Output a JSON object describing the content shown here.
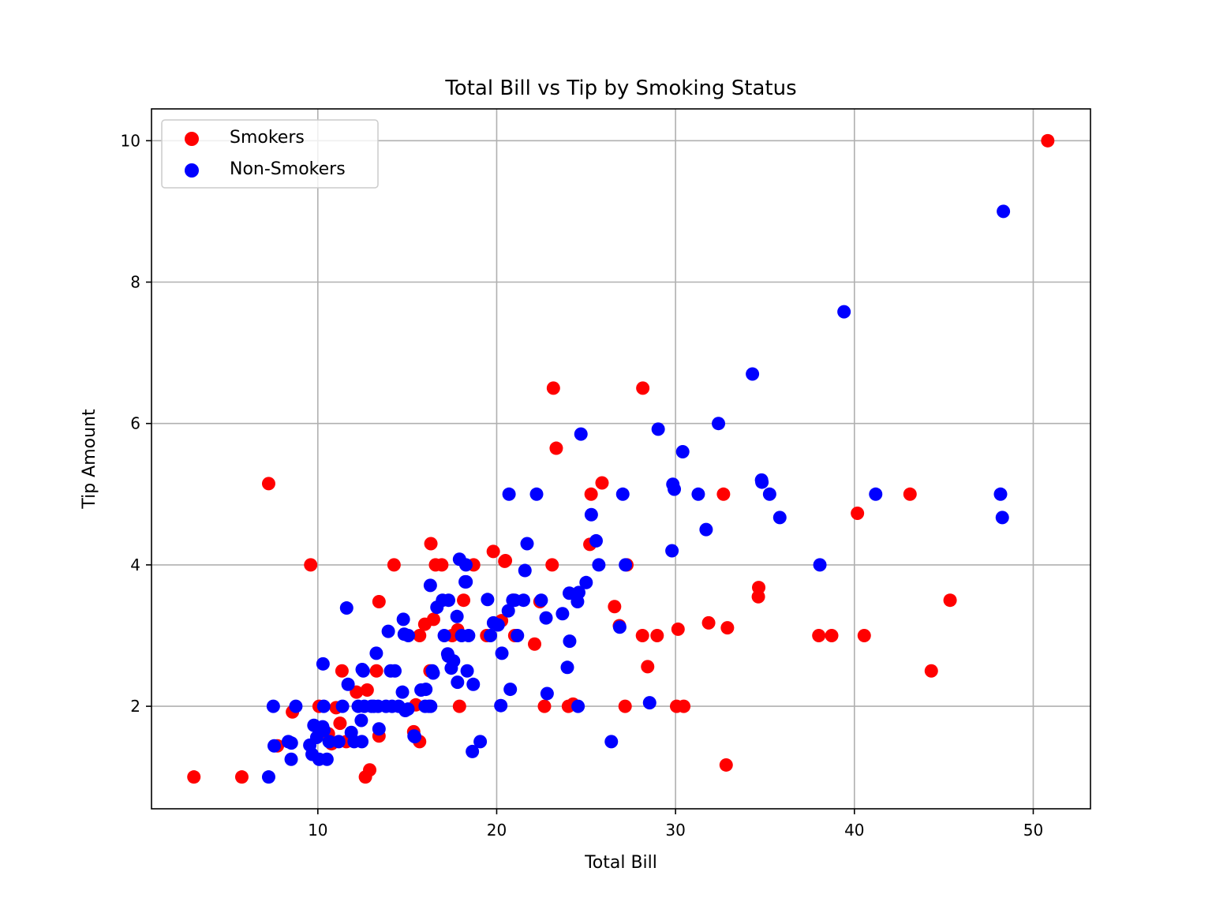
{
  "chart_data": {
    "type": "scatter",
    "title": "Total Bill vs Tip by Smoking Status",
    "xlabel": "Total Bill",
    "ylabel": "Tip Amount",
    "xlim": [
      0.7,
      53.2
    ],
    "ylim": [
      0.55,
      10.45
    ],
    "xticks": [
      10,
      20,
      30,
      40,
      50
    ],
    "yticks": [
      2,
      4,
      6,
      8,
      10
    ],
    "grid": true,
    "legend_position": "top-left",
    "series": [
      {
        "name": "Smokers",
        "color": "#ff0000",
        "points": [
          [
            3.07,
            1.0
          ],
          [
            5.75,
            1.0
          ],
          [
            7.25,
            5.15
          ],
          [
            7.74,
            1.44
          ],
          [
            8.58,
            1.92
          ],
          [
            9.6,
            4.0
          ],
          [
            10.07,
            2.0
          ],
          [
            10.59,
            1.61
          ],
          [
            10.77,
            1.47
          ],
          [
            11.02,
            1.98
          ],
          [
            11.24,
            1.76
          ],
          [
            11.35,
            2.5
          ],
          [
            11.59,
            1.5
          ],
          [
            12.16,
            2.2
          ],
          [
            12.66,
            1.0
          ],
          [
            12.76,
            2.23
          ],
          [
            12.9,
            1.1
          ],
          [
            13.28,
            2.5
          ],
          [
            13.42,
            1.58
          ],
          [
            13.42,
            3.48
          ],
          [
            14.26,
            4.0
          ],
          [
            15.36,
            1.64
          ],
          [
            15.48,
            2.02
          ],
          [
            15.69,
            3.0
          ],
          [
            15.69,
            1.5
          ],
          [
            15.98,
            3.16
          ],
          [
            16.27,
            2.5
          ],
          [
            16.32,
            4.3
          ],
          [
            16.47,
            3.23
          ],
          [
            16.58,
            4.0
          ],
          [
            16.93,
            4.0
          ],
          [
            17.51,
            3.0
          ],
          [
            17.82,
            3.08
          ],
          [
            17.92,
            2.0
          ],
          [
            18.15,
            3.5
          ],
          [
            18.71,
            4.0
          ],
          [
            19.44,
            3.0
          ],
          [
            19.81,
            4.19
          ],
          [
            20.27,
            3.21
          ],
          [
            20.45,
            4.05
          ],
          [
            20.49,
            4.06
          ],
          [
            20.92,
            3.5
          ],
          [
            21.01,
            3.0
          ],
          [
            22.12,
            2.88
          ],
          [
            22.42,
            3.48
          ],
          [
            22.67,
            2.0
          ],
          [
            23.1,
            4.0
          ],
          [
            23.17,
            6.5
          ],
          [
            23.33,
            5.65
          ],
          [
            24.01,
            2.0
          ],
          [
            24.27,
            2.03
          ],
          [
            25.21,
            4.29
          ],
          [
            25.28,
            5.0
          ],
          [
            25.89,
            5.16
          ],
          [
            26.59,
            3.41
          ],
          [
            26.86,
            3.14
          ],
          [
            27.18,
            2.0
          ],
          [
            27.28,
            4.0
          ],
          [
            28.17,
            6.5
          ],
          [
            28.15,
            3.0
          ],
          [
            28.44,
            2.56
          ],
          [
            28.97,
            3.0
          ],
          [
            30.06,
            2.0
          ],
          [
            30.14,
            3.09
          ],
          [
            30.46,
            2.0
          ],
          [
            31.85,
            3.18
          ],
          [
            32.68,
            5.0
          ],
          [
            32.83,
            1.17
          ],
          [
            32.9,
            3.11
          ],
          [
            34.63,
            3.55
          ],
          [
            34.65,
            3.68
          ],
          [
            38.01,
            3.0
          ],
          [
            38.73,
            3.0
          ],
          [
            40.17,
            4.73
          ],
          [
            40.55,
            3.0
          ],
          [
            43.11,
            5.0
          ],
          [
            44.3,
            2.5
          ],
          [
            45.35,
            3.5
          ],
          [
            50.81,
            10.0
          ]
        ]
      },
      {
        "name": "Non-Smokers",
        "color": "#0000ff",
        "points": [
          [
            7.25,
            1.0
          ],
          [
            7.51,
            2.0
          ],
          [
            7.56,
            1.44
          ],
          [
            8.35,
            1.5
          ],
          [
            8.51,
            1.25
          ],
          [
            8.52,
            1.48
          ],
          [
            8.77,
            2.0
          ],
          [
            9.55,
            1.45
          ],
          [
            9.68,
            1.32
          ],
          [
            9.78,
            1.73
          ],
          [
            9.94,
            1.56
          ],
          [
            10.07,
            1.25
          ],
          [
            10.27,
            1.71
          ],
          [
            10.29,
            2.6
          ],
          [
            10.33,
            2.0
          ],
          [
            10.34,
            1.66
          ],
          [
            10.51,
            1.25
          ],
          [
            10.63,
            1.5
          ],
          [
            10.65,
            1.5
          ],
          [
            11.17,
            1.5
          ],
          [
            11.38,
            2.0
          ],
          [
            11.61,
            3.39
          ],
          [
            11.69,
            2.31
          ],
          [
            11.87,
            1.63
          ],
          [
            12.03,
            1.5
          ],
          [
            12.26,
            2.0
          ],
          [
            12.43,
            1.8
          ],
          [
            12.46,
            1.5
          ],
          [
            12.48,
            2.52
          ],
          [
            12.54,
            2.5
          ],
          [
            12.6,
            2.0
          ],
          [
            13.0,
            2.0
          ],
          [
            13.13,
            2.0
          ],
          [
            13.27,
            2.75
          ],
          [
            13.37,
            2.0
          ],
          [
            13.42,
            1.68
          ],
          [
            13.81,
            2.0
          ],
          [
            13.94,
            3.06
          ],
          [
            14.07,
            2.5
          ],
          [
            14.15,
            2.0
          ],
          [
            14.31,
            2.5
          ],
          [
            14.52,
            2.0
          ],
          [
            14.73,
            2.2
          ],
          [
            14.78,
            3.23
          ],
          [
            14.83,
            3.02
          ],
          [
            14.89,
            1.94
          ],
          [
            15.04,
            1.96
          ],
          [
            15.06,
            3.0
          ],
          [
            15.38,
            1.58
          ],
          [
            15.42,
            1.57
          ],
          [
            15.77,
            2.23
          ],
          [
            16.0,
            2.0
          ],
          [
            16.04,
            2.24
          ],
          [
            16.21,
            2.0
          ],
          [
            16.29,
            3.71
          ],
          [
            16.31,
            2.0
          ],
          [
            16.4,
            2.5
          ],
          [
            16.45,
            2.47
          ],
          [
            16.66,
            3.4
          ],
          [
            16.97,
            3.5
          ],
          [
            17.07,
            3.0
          ],
          [
            17.26,
            2.74
          ],
          [
            17.29,
            2.71
          ],
          [
            17.31,
            3.5
          ],
          [
            17.46,
            2.54
          ],
          [
            17.59,
            2.64
          ],
          [
            17.78,
            3.27
          ],
          [
            17.81,
            2.34
          ],
          [
            17.92,
            4.08
          ],
          [
            18.04,
            3.0
          ],
          [
            18.24,
            3.76
          ],
          [
            18.28,
            4.0
          ],
          [
            18.29,
            3.76
          ],
          [
            18.35,
            2.5
          ],
          [
            18.43,
            3.0
          ],
          [
            18.64,
            1.36
          ],
          [
            18.69,
            2.31
          ],
          [
            19.08,
            1.5
          ],
          [
            19.49,
            3.51
          ],
          [
            19.65,
            3.0
          ],
          [
            19.82,
            3.18
          ],
          [
            20.08,
            3.15
          ],
          [
            20.23,
            2.01
          ],
          [
            20.29,
            2.75
          ],
          [
            20.65,
            3.35
          ],
          [
            20.69,
            5.0
          ],
          [
            20.76,
            2.24
          ],
          [
            20.9,
            3.5
          ],
          [
            21.01,
            3.5
          ],
          [
            21.16,
            3.0
          ],
          [
            21.5,
            3.5
          ],
          [
            21.58,
            3.92
          ],
          [
            21.7,
            4.3
          ],
          [
            22.23,
            5.0
          ],
          [
            22.49,
            3.5
          ],
          [
            22.76,
            3.25
          ],
          [
            22.82,
            2.18
          ],
          [
            23.68,
            3.31
          ],
          [
            23.95,
            2.55
          ],
          [
            24.06,
            3.6
          ],
          [
            24.08,
            2.92
          ],
          [
            24.52,
            3.48
          ],
          [
            24.55,
            2.0
          ],
          [
            24.59,
            3.61
          ],
          [
            24.71,
            5.85
          ],
          [
            25.0,
            3.75
          ],
          [
            25.29,
            4.71
          ],
          [
            25.56,
            4.34
          ],
          [
            25.71,
            4.0
          ],
          [
            26.41,
            1.5
          ],
          [
            26.88,
            3.12
          ],
          [
            27.05,
            5.0
          ],
          [
            27.2,
            4.0
          ],
          [
            28.55,
            2.05
          ],
          [
            29.03,
            5.92
          ],
          [
            29.8,
            4.2
          ],
          [
            29.85,
            5.14
          ],
          [
            29.93,
            5.07
          ],
          [
            30.4,
            5.6
          ],
          [
            31.27,
            5.0
          ],
          [
            31.71,
            4.5
          ],
          [
            32.4,
            6.0
          ],
          [
            34.3,
            6.7
          ],
          [
            34.81,
            5.2
          ],
          [
            34.83,
            5.17
          ],
          [
            35.26,
            5.0
          ],
          [
            35.83,
            4.67
          ],
          [
            38.07,
            4.0
          ],
          [
            39.42,
            7.58
          ],
          [
            41.19,
            5.0
          ],
          [
            48.17,
            5.0
          ],
          [
            48.27,
            4.67
          ],
          [
            48.33,
            9.0
          ]
        ]
      }
    ]
  }
}
